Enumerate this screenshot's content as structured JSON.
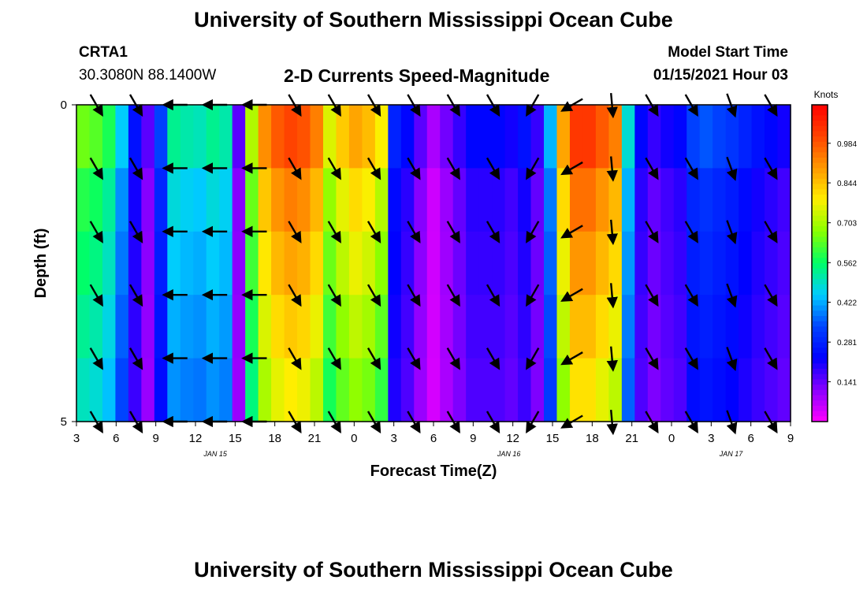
{
  "header": {
    "title": "University of Southern Mississippi Ocean Cube",
    "station_id": "CRTA1",
    "coordinates": "30.3080N 88.1400W",
    "subtitle": "2-D Currents Speed-Magnitude",
    "model_start_label": "Model Start Time",
    "model_start_value": "01/15/2021 Hour 03"
  },
  "footer": {
    "title": "University of Southern Mississippi Ocean Cube"
  },
  "colorbar": {
    "unit_label": "Knots",
    "ticks": [
      "0.984",
      "0.844",
      "0.703",
      "0.562",
      "0.422",
      "0.281",
      "0.141"
    ],
    "tick_values": [
      0.984,
      0.844,
      0.703,
      0.562,
      0.422,
      0.281,
      0.141
    ],
    "range": [
      0.0,
      1.12
    ],
    "colors": [
      "#ff00ff",
      "#8800ff",
      "#0000ff",
      "#0044ff",
      "#00ccff",
      "#00ff66",
      "#88ff00",
      "#ffee00",
      "#ff9900",
      "#ff4400",
      "#ff0000"
    ]
  },
  "chart_data": {
    "type": "heatmap",
    "xlabel": "Forecast Time(Z)",
    "ylabel": "Depth (ft)",
    "x_tick_labels": [
      "3",
      "6",
      "9",
      "12",
      "15",
      "18",
      "21",
      "0",
      "3",
      "6",
      "9",
      "12",
      "15",
      "18",
      "21",
      "0",
      "3",
      "6",
      "9"
    ],
    "date_labels": [
      {
        "text": "JAN 15",
        "tick_index": 3.5
      },
      {
        "text": "JAN 16",
        "tick_index": 10.9
      },
      {
        "text": "JAN 17",
        "tick_index": 16.5
      }
    ],
    "x_range_hours": [
      3,
      57
    ],
    "y_tick_labels": [
      "0",
      "5"
    ],
    "y_range_ft": [
      0,
      5
    ],
    "depth_rows": 5,
    "speed_by_hour_knots": [
      0.62,
      0.6,
      0.55,
      0.42,
      0.22,
      0.12,
      0.3,
      0.5,
      0.48,
      0.47,
      0.5,
      0.48,
      0.12,
      0.68,
      0.88,
      0.95,
      0.98,
      0.96,
      0.9,
      0.72,
      0.8,
      0.85,
      0.82,
      0.75,
      0.25,
      0.2,
      0.12,
      0.05,
      0.1,
      0.15,
      0.2,
      0.2,
      0.2,
      0.18,
      0.22,
      0.15,
      0.4,
      0.85,
      1.0,
      1.0,
      0.95,
      0.9,
      0.45,
      0.2,
      0.15,
      0.18,
      0.2,
      0.3,
      0.32,
      0.3,
      0.28,
      0.25,
      0.22,
      0.2,
      0.18
    ],
    "vector_times_hours": [
      4.5,
      7.5,
      10.5,
      13.5,
      16.5,
      19.5,
      22.5,
      25.5,
      28.5,
      31.5,
      34.5,
      37.5,
      40.5,
      43.5,
      46.5,
      49.5,
      52.5,
      55.5
    ],
    "vector_depths_ft": [
      0,
      1,
      2,
      3,
      4,
      5
    ],
    "vector_directions_deg": [
      150,
      150,
      270,
      270,
      270,
      150,
      150,
      150,
      150,
      150,
      150,
      210,
      240,
      175,
      150,
      150,
      160,
      150
    ]
  }
}
